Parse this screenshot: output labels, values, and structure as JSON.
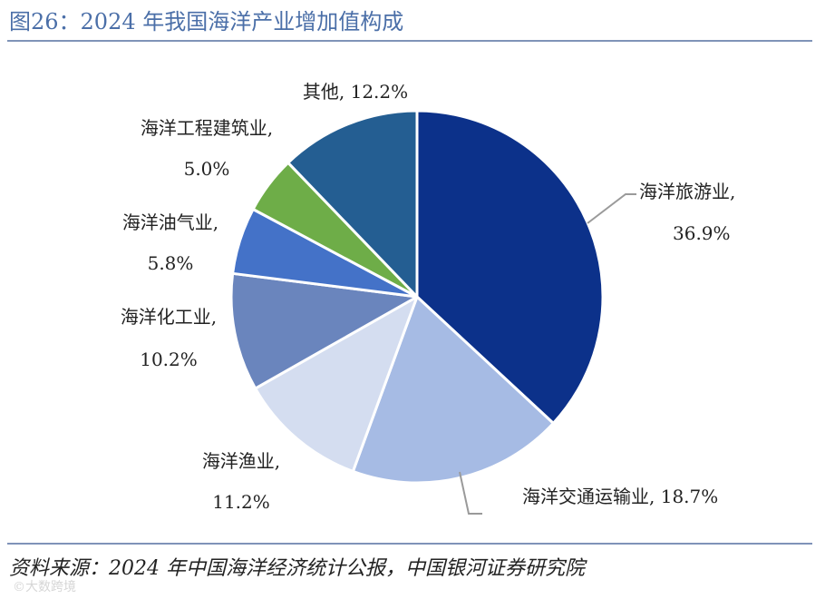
{
  "figure": {
    "title": "图26：2024 年我国海洋产业增加值构成",
    "source": "资料来源：2024 年中国海洋经济统计公报，中国银河证券研究院",
    "watermark": "©大数跨境"
  },
  "chart_data": {
    "type": "pie",
    "title": "图26：2024 年我国海洋产业增加值构成",
    "unit": "%",
    "start_angle_deg": 0,
    "direction": "clockwise",
    "slices": [
      {
        "label": "海洋旅游业",
        "value": 36.9,
        "value_text": "36.9%",
        "color": "#0c318a"
      },
      {
        "label": "海洋交通运输业",
        "value": 18.7,
        "value_text": "18.7%",
        "color": "#a6bbe4"
      },
      {
        "label": "海洋渔业",
        "value": 11.2,
        "value_text": "11.2%",
        "color": "#d4ddf0"
      },
      {
        "label": "海洋化工业",
        "value": 10.2,
        "value_text": "10.2%",
        "color": "#6a85bd"
      },
      {
        "label": "海洋油气业",
        "value": 5.8,
        "value_text": "5.8%",
        "color": "#4472c8"
      },
      {
        "label": "海洋工程建筑业",
        "value": 5.0,
        "value_text": "5.0%",
        "color": "#6ead48"
      },
      {
        "label": "其他",
        "value": 12.2,
        "value_text": "12.2%",
        "color": "#245e92"
      }
    ],
    "leader_line_color": "#9a9a9a",
    "slice_border_color": "#ffffff"
  }
}
